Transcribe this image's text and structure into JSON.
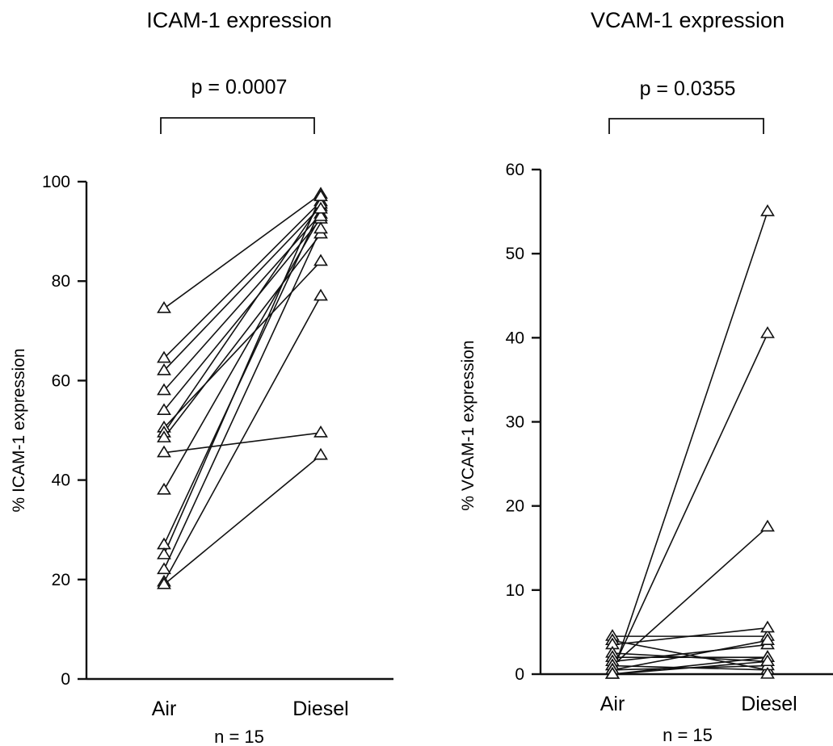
{
  "chart_data": [
    {
      "type": "line",
      "title": "ICAM-1 expression",
      "p_label": "p  =  0.0007",
      "ylabel": "% ICAM-1 expression",
      "n_label": "n  =  15",
      "categories": [
        "Air",
        "Diesel"
      ],
      "ylim": [
        0,
        100
      ],
      "yticks": [
        "0",
        "20",
        "40",
        "60",
        "80",
        "100"
      ],
      "pairs": [
        [
          74.5,
          97.5
        ],
        [
          64.5,
          96.0
        ],
        [
          62.0,
          95.0
        ],
        [
          58.0,
          93.5
        ],
        [
          54.0,
          92.5
        ],
        [
          50.5,
          84.0
        ],
        [
          49.5,
          95.5
        ],
        [
          48.5,
          89.5
        ],
        [
          45.5,
          49.5
        ],
        [
          38.0,
          93.0
        ],
        [
          27.0,
          94.5
        ],
        [
          25.0,
          97.0
        ],
        [
          22.0,
          90.5
        ],
        [
          19.5,
          77.0
        ],
        [
          19.0,
          45.0
        ]
      ]
    },
    {
      "type": "line",
      "title": "VCAM-1 expression",
      "p_label": "p  =  0.0355",
      "ylabel": "% VCAM-1 expression",
      "n_label": "n  =  15",
      "categories": [
        "Air",
        "Diesel"
      ],
      "ylim": [
        0,
        60
      ],
      "yticks": [
        "0",
        "10",
        "20",
        "30",
        "40",
        "50",
        "60"
      ],
      "pairs": [
        [
          4.5,
          4.5
        ],
        [
          4.0,
          0.5
        ],
        [
          3.5,
          5.5
        ],
        [
          2.5,
          1.5
        ],
        [
          2.0,
          2.0
        ],
        [
          1.5,
          3.5
        ],
        [
          1.0,
          17.5
        ],
        [
          1.0,
          0.5
        ],
        [
          0.5,
          40.5
        ],
        [
          0.5,
          4.0
        ],
        [
          0.5,
          1.0
        ],
        [
          0.0,
          55.0
        ],
        [
          0.0,
          2.0
        ],
        [
          0.0,
          0.0
        ],
        [
          0.0,
          1.5
        ]
      ]
    }
  ]
}
